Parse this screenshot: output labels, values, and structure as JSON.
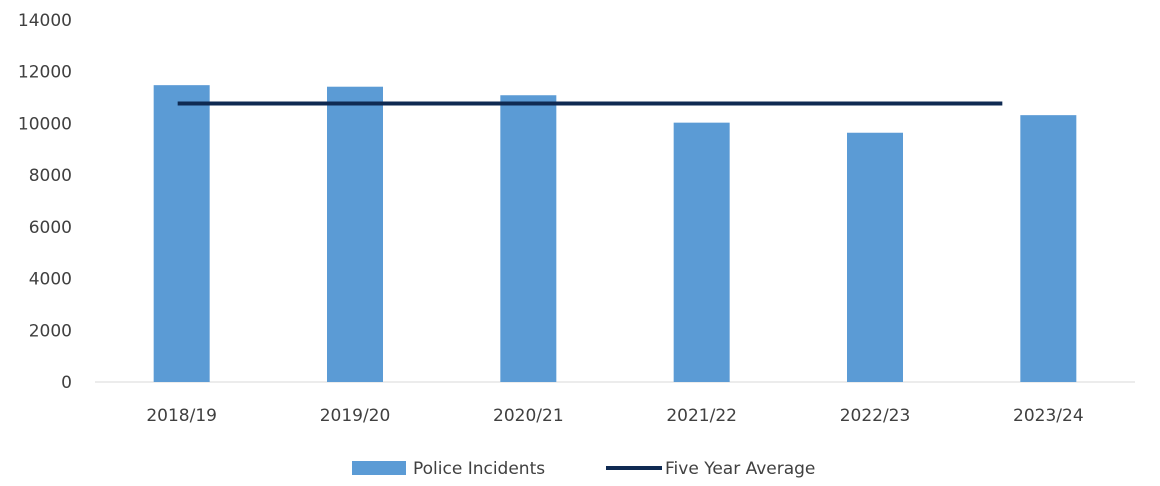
{
  "chart_data": {
    "type": "bar",
    "categories": [
      "2018/19",
      "2019/20",
      "2020/21",
      "2021/22",
      "2022/23",
      "2023/24"
    ],
    "series": [
      {
        "name": "Police Incidents",
        "type": "bar",
        "color": "#5b9bd5",
        "values": [
          11480,
          11420,
          11090,
          10030,
          9640,
          10320
        ]
      },
      {
        "name": "Five Year Average",
        "type": "line",
        "color": "#0f2a52",
        "values": [
          10770,
          10770,
          10770,
          10770,
          10770,
          10770
        ]
      }
    ],
    "ylim": [
      0,
      14000
    ],
    "yticks": [
      0,
      2000,
      4000,
      6000,
      8000,
      10000,
      12000,
      14000
    ],
    "title": "",
    "xlabel": "",
    "ylabel": "",
    "grid": false,
    "legend": "bottom-center"
  }
}
